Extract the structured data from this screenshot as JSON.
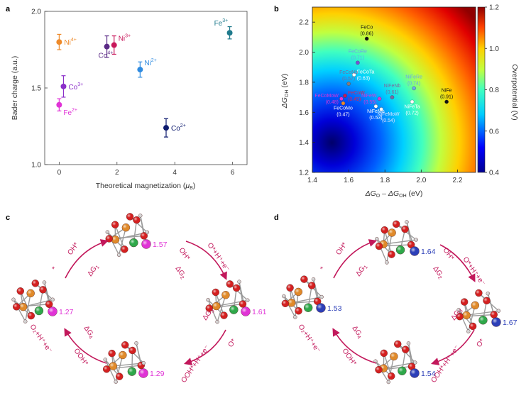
{
  "panels": {
    "a": "a",
    "b": "b",
    "c": "c",
    "d": "d"
  },
  "panel_a": {
    "ylabel": "Bader charge (a.u.)",
    "xlabel_main": "Theoretical magnetization (",
    "xlabel_mu": "μ",
    "xlabel_sub": "B",
    "xlabel_end": ")",
    "xticks": [
      "0",
      "2",
      "4",
      "6"
    ],
    "yticks": [
      "1.0",
      "1.5",
      "2.0"
    ]
  },
  "panel_b": {
    "ylabel_main": "ΔG",
    "ylabel_sub": "OH",
    "ylabel_unit": " (eV)",
    "xlabel": "ΔG",
    "xlabel_sub1": "O",
    "xlabel_mid": " – ΔG",
    "xlabel_sub2": "OH",
    "xlabel_unit": " (eV)",
    "xticks": [
      "1.4",
      "1.6",
      "1.8",
      "2.0",
      "2.2"
    ],
    "yticks": [
      "1.2",
      "1.4",
      "1.6",
      "1.8",
      "2.0",
      "2.2"
    ],
    "colorbar_label": "Overpotential (V)",
    "colorbar_ticks": [
      "0.4",
      "0.6",
      "0.8",
      "1.0",
      "1.2"
    ]
  },
  "chart_data": [
    {
      "type": "scatter",
      "title": "",
      "xlabel": "Theoretical magnetization (μB)",
      "ylabel": "Bader charge (a.u.)",
      "xlim": [
        -0.5,
        6.5
      ],
      "ylim": [
        1.0,
        2.0
      ],
      "grid": false,
      "points": [
        {
          "ion": "Ni",
          "ox": "4+",
          "x": 0,
          "y": 1.8,
          "err": 0.05,
          "color": "#ee8a2a",
          "label_side": "right"
        },
        {
          "ion": "Fe",
          "ox": "2+",
          "x": 0,
          "y": 1.39,
          "err": 0.04,
          "color": "#e033d6",
          "label_side": "below-right"
        },
        {
          "ion": "Co",
          "ox": "3+",
          "x": 0.15,
          "y": 1.51,
          "err": 0.07,
          "color": "#8b2fc9",
          "label_side": "right"
        },
        {
          "ion": "Co",
          "ox": "4+",
          "x": 1.65,
          "y": 1.77,
          "err": 0.07,
          "color": "#5b2a86",
          "label_side": "below"
        },
        {
          "ion": "Ni",
          "ox": "3+",
          "x": 1.9,
          "y": 1.78,
          "err": 0.06,
          "color": "#c8175a",
          "label_side": "above-right"
        },
        {
          "ion": "Ni",
          "ox": "2+",
          "x": 2.8,
          "y": 1.62,
          "err": 0.05,
          "color": "#2f8be0",
          "label_side": "above-right"
        },
        {
          "ion": "Co",
          "ox": "2+",
          "x": 3.7,
          "y": 1.24,
          "err": 0.06,
          "color": "#0d1a6e",
          "label_side": "right"
        },
        {
          "ion": "Fe",
          "ox": "3+",
          "x": 5.9,
          "y": 1.86,
          "err": 0.04,
          "color": "#1f7a8c",
          "label_side": "above-left"
        }
      ]
    },
    {
      "type": "scatter",
      "title": "",
      "xlabel": "ΔGO – ΔGOH (eV)",
      "ylabel": "ΔGOH (eV)",
      "xlim": [
        1.4,
        2.3
      ],
      "ylim": [
        1.2,
        2.3
      ],
      "colorbar": {
        "label": "Overpotential (V)",
        "range": [
          0.4,
          1.2
        ]
      },
      "points": [
        {
          "name": "FeCo",
          "value": "(0.86)",
          "x": 1.7,
          "y": 2.09,
          "color": "#111111",
          "text": "#111111",
          "label_pos": "above"
        },
        {
          "name": "FeCoRe",
          "value": "(0.71)",
          "x": 1.65,
          "y": 1.93,
          "color": "#7a4fd6",
          "text": "#6aa8e8",
          "label_pos": "above"
        },
        {
          "name": "FeCoTa",
          "value": "(0.63)",
          "x": 1.63,
          "y": 1.85,
          "color": "#ffffff",
          "text": "#ffffff",
          "label_pos": "right"
        },
        {
          "name": "FeCoNb",
          "value": "(0.57)",
          "x": 1.6,
          "y": 1.79,
          "color": "#8a7a7a",
          "text": "#7a6a9a",
          "label_pos": "above"
        },
        {
          "name": "FeCoMoW",
          "value": "(0.48)",
          "x": 1.56,
          "y": 1.69,
          "color": "#e033d6",
          "text": "#e033d6",
          "label_pos": "left"
        },
        {
          "name": "FeCoW",
          "value": "(0.49)",
          "x": 1.58,
          "y": 1.71,
          "color": "#c8175a",
          "text": "#e02050",
          "label_pos": "right"
        },
        {
          "name": "FeCoMo",
          "value": "(0.47)",
          "x": 1.57,
          "y": 1.66,
          "color": "#ee8a2a",
          "text": "#ffffff",
          "label_pos": "below"
        },
        {
          "name": "NiFeW",
          "value": "(0.55)",
          "x": 1.77,
          "y": 1.69,
          "color": "#e033d6",
          "text": "#e033d6",
          "label_pos": "left"
        },
        {
          "name": "NiFeNb",
          "value": "(0.61)",
          "x": 1.84,
          "y": 1.7,
          "color": "#7a6aa0",
          "text": "#7a6aa0",
          "label_pos": "above"
        },
        {
          "name": "NiFeMo",
          "value": "(0.53)",
          "x": 1.75,
          "y": 1.64,
          "color": "#ffffff",
          "text": "#ffffff",
          "label_pos": "below"
        },
        {
          "name": "NiFeMoW",
          "value": "(0.54)",
          "x": 1.78,
          "y": 1.62,
          "color": "#ffffff",
          "text": "#e0e0ff",
          "label_pos": "below-right"
        },
        {
          "name": "NiFeRe",
          "value": "(0.74)",
          "x": 1.96,
          "y": 1.76,
          "color": "#6aa8e8",
          "text": "#6aa8e8",
          "label_pos": "above"
        },
        {
          "name": "NiFeTa",
          "value": "(0.72)",
          "x": 1.95,
          "y": 1.67,
          "color": "#ffffff",
          "text": "#ffffff",
          "label_pos": "below"
        },
        {
          "name": "NiFe",
          "value": "(0.91)",
          "x": 2.14,
          "y": 1.67,
          "color": "#111111",
          "text": "#111111",
          "label_pos": "above"
        }
      ]
    }
  ],
  "panel_c": {
    "charges": [
      "1.27",
      "1.57",
      "1.61",
      "1.29"
    ],
    "color": "#e033d6",
    "steps": {
      "s1_in": "*",
      "s1_out": "OH*",
      "s1_dg": "ΔG",
      "s1_sub": "1",
      "s2_in": "OH*",
      "s2_out": "O*+H⁺+e⁻",
      "s2_dg": "ΔG",
      "s2_sub": "2",
      "s3_in": "O*",
      "s3_out": "OOH*+H⁺+e⁻",
      "s3_dg": "ΔG",
      "s3_sub": "3",
      "s4_in": "OOH*",
      "s4_out": "O₂+H⁺+e⁻",
      "s4_dg": "ΔG",
      "s4_sub": "4"
    }
  },
  "panel_d": {
    "charges": [
      "1.53",
      "1.64",
      "1.67",
      "1.54"
    ],
    "color": "#2c3fb8",
    "steps": {
      "s1_in": "*",
      "s1_out": "OH*",
      "s1_dg": "ΔG",
      "s1_sub": "1",
      "s2_in": "OH*",
      "s2_out": "O*+H⁺+e⁻",
      "s2_dg": "ΔG",
      "s2_sub": "2",
      "s3_in": "O*",
      "s3_out": "OOH*+H⁺+e⁻",
      "s3_dg": "ΔG",
      "s3_sub": "3",
      "s4_in": "OOH*",
      "s4_out": "O₂+H⁺+e⁻",
      "s4_dg": "ΔG",
      "s4_sub": "4"
    }
  }
}
